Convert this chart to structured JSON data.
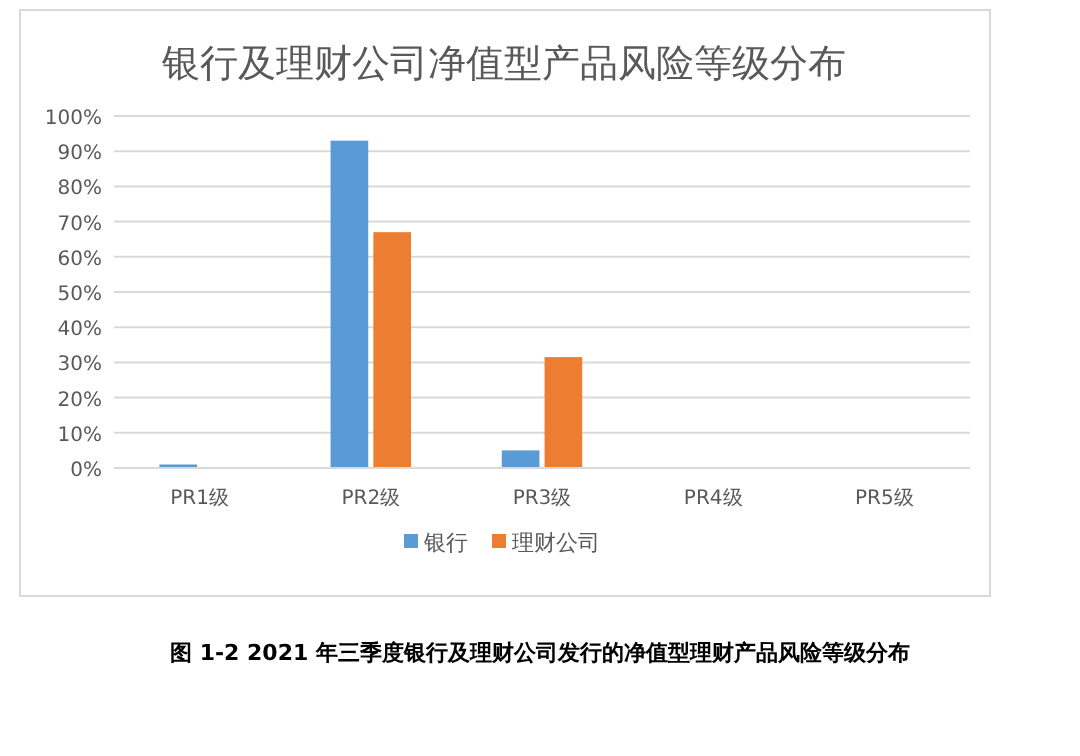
{
  "chart_data": {
    "type": "bar",
    "title": "银行及理财公司净值型产品风险等级分布",
    "categories": [
      "PR1级",
      "PR2级",
      "PR3级",
      "PR4级",
      "PR5级"
    ],
    "series": [
      {
        "name": "银行",
        "color": "#5b9bd5",
        "values": [
          1,
          93,
          5,
          0,
          0
        ]
      },
      {
        "name": "理财公司",
        "color": "#ed7d31",
        "values": [
          0,
          67,
          31.5,
          0,
          0
        ]
      }
    ],
    "ylim": [
      0,
      100
    ],
    "yticks": [
      {
        "value": 0,
        "label": "0%"
      },
      {
        "value": 10,
        "label": "10%"
      },
      {
        "value": 20,
        "label": "20%"
      },
      {
        "value": 30,
        "label": "30%"
      },
      {
        "value": 40,
        "label": "40%"
      },
      {
        "value": 50,
        "label": "50%"
      },
      {
        "value": 60,
        "label": "60%"
      },
      {
        "value": 70,
        "label": "70%"
      },
      {
        "value": 80,
        "label": "80%"
      },
      {
        "value": 90,
        "label": "90%"
      },
      {
        "value": 100,
        "label": "100%"
      }
    ],
    "grid": "y",
    "legend": "bottom",
    "annotations": [
      "图 1-2 2021 年三季度银行及理财公司发行的净值型理财产品风险等级分布"
    ]
  }
}
